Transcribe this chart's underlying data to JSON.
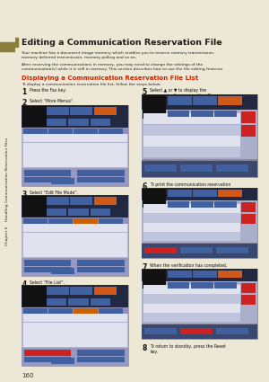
{
  "page_bg": "#ede8d5",
  "sidebar_bg": "#e8e0c8",
  "sidebar_bar_color": "#8b7d3a",
  "main_bg": "#ffffff",
  "title_text": "Editing a Communication Reservation File",
  "title_color": "#1a1a1a",
  "title_fontsize": 6.8,
  "body_text1": "Your machine has a document image memory which enables you to reserve memory transmission,\nmemory deferred transmission, memory polling and so on.",
  "body_text2": "After reserving the communications in memory, you may need to change the settings of the\ncommunication(s) while it is still in memory. This section describes how to use the file editing features.",
  "section_title": "Displaying a Communication Reservation File List",
  "section_title_color": "#cc2200",
  "section_body": "To display a communication reservation file list, follow the steps below:",
  "sidebar_text": "Chapter 6    Handling Communication Reservation Files",
  "sidebar_text_color": "#2a2a2a",
  "page_number": "160",
  "scr_outer": "#9090b0",
  "scr_dark": "#222840",
  "scr_mid": "#3a4870",
  "scr_light_row": "#c0c4dc",
  "scr_white_row": "#e0e2ee",
  "scr_btn_blue": "#4060a0",
  "scr_btn_orange": "#d05818",
  "scr_btn_green": "#407050",
  "scr_btn_red_hi": "#cc2222",
  "scr_btn_orange_hi": "#cc6000",
  "scr_scroll": "#cc2222",
  "scr_black": "#111111",
  "scr_tab_bg": "#8090c0",
  "scr_content_bg": "#aab0cc"
}
